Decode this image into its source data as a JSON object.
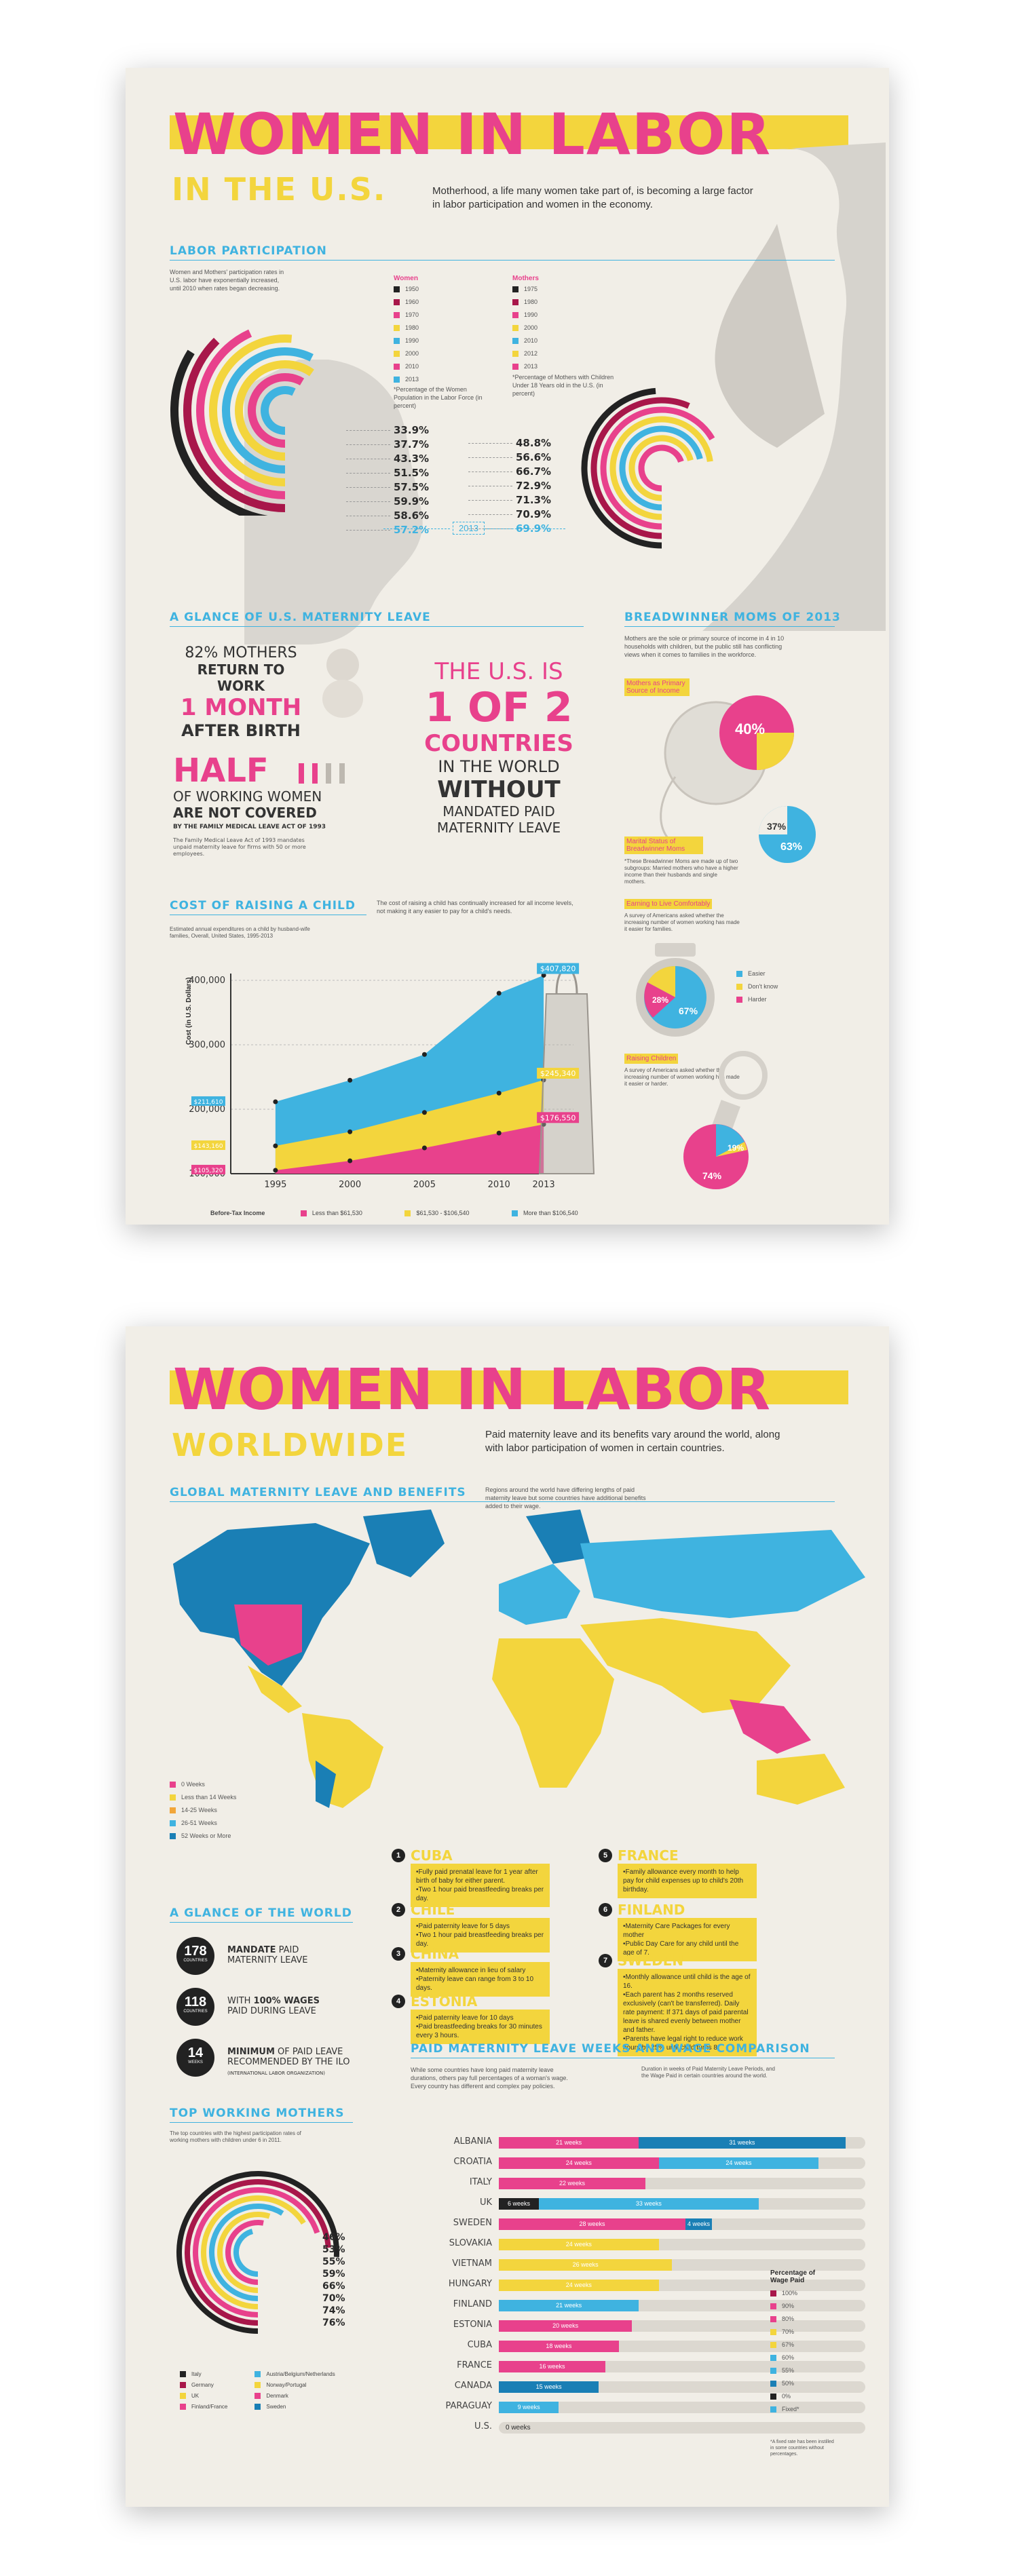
{
  "poster1": {
    "title_line1": "WOMEN IN LABOR",
    "title_line2": "IN THE U.S.",
    "intro": "Motherhood, a life many women take part of, is becoming a large factor in labor participation and women in the economy.",
    "labor": {
      "heading": "LABOR PARTICIPATION",
      "desc": "Women and Mothers' participation rates in U.S. labor have exponentially increased, until 2010 when rates began decreasing.",
      "women_legend_title": "Women",
      "mothers_legend_title": "Mothers",
      "women_years": [
        "1950",
        "1960",
        "1970",
        "1980",
        "1990",
        "2000",
        "2010",
        "2013"
      ],
      "women_values": [
        "33.9%",
        "37.7%",
        "43.3%",
        "51.5%",
        "57.5%",
        "59.9%",
        "58.6%",
        "57.2%"
      ],
      "mothers_years": [
        "1975",
        "1980",
        "1990",
        "2000",
        "2010",
        "2012",
        "2013"
      ],
      "mothers_values": [
        "48.8%",
        "56.6%",
        "66.7%",
        "72.9%",
        "71.3%",
        "70.9%",
        "69.9%"
      ],
      "women_note": "*Percentage of the Women Population in the Labor Force (in percent)",
      "mothers_note": "*Percentage of Mothers with Children Under 18 Years old in the U.S. (in percent)",
      "year_tag": "2013"
    },
    "maternity": {
      "heading": "A GLANCE OF U.S. MATERNITY LEAVE",
      "stat1_a": "82% MOTHERS",
      "stat1_b": "RETURN TO WORK",
      "stat1_c": "1 MONTH",
      "stat1_d": "AFTER BIRTH",
      "half": "HALF",
      "half_b": "OF WORKING WOMEN",
      "half_c": "ARE NOT COVERED",
      "half_d": "BY THE FAMILY MEDICAL LEAVE ACT OF 1993",
      "half_note": "The Family Medical Leave Act of 1993 mandates unpaid maternity leave for firms with 50 or more employees.",
      "us_a": "THE U.S. IS",
      "us_b": "1 OF 2",
      "us_c": "COUNTRIES",
      "us_d": "IN THE WORLD",
      "us_e": "WITHOUT",
      "us_f": "MANDATED PAID",
      "us_g": "MATERNITY LEAVE"
    },
    "breadwinner": {
      "heading": "BREADWINNER MOMS OF 2013",
      "desc": "Mothers are the sole or primary source of income in 4 in 10 households with children, but the public still has conflicting views when it comes to families in the workforce.",
      "label1": "Mothers as Primary Source of Income",
      "value1": "40%",
      "label2": "Marital Status of Breadwinner Moms",
      "value2a": "37%",
      "value2b": "63%",
      "note2": "*These Breadwinner Moms are made up of two subgroups: Married mothers who have a higher income than their husbands and single mothers.",
      "label3": "Earning to Live Comfortably",
      "desc3": "A survey of Americans asked whether the increasing number of women working has made it easier for families.",
      "pie3": [
        "28%",
        "67%"
      ],
      "legend3": [
        "Easier",
        "Don't know",
        "Harder"
      ],
      "label4": "Raising Children",
      "desc4": "A survey of Americans asked whether the increasing number of women working has made it easier or harder.",
      "pie4": [
        "19%",
        "74%"
      ]
    },
    "cost": {
      "heading": "COST OF RAISING A CHILD",
      "desc": "The cost of raising a child has continually increased for all income levels, not making it any easier to pay for a child's needs.",
      "note": "Estimated annual expenditures on a child by husband-wife families, Overall, United States, 1995-2013",
      "ylabel": "Cost (in U.S. Dollars)",
      "legend_title": "Before-Tax Income",
      "legend": [
        "Less than $61,530",
        "$61,530 - $106,540",
        "More than $106,540"
      ],
      "callouts": [
        "$407,820",
        "$245,340",
        "$176,550"
      ],
      "left_callouts": [
        "$211,610",
        "$143,160",
        "$105,320"
      ]
    }
  },
  "poster2": {
    "title_line1": "WOMEN IN LABOR",
    "title_line2": "WORLDWIDE",
    "intro": "Paid maternity leave and its benefits vary around the world, along with labor participation of women in certain countries.",
    "map": {
      "heading": "GLOBAL MATERNITY LEAVE AND BENEFITS",
      "desc": "Regions around the world have differing lengths of paid maternity leave but some countries have additional benefits added to their wage.",
      "legend": [
        "0 Weeks",
        "Less than 14 Weeks",
        "14-25 Weeks",
        "26-51 Weeks",
        "52 Weeks or More"
      ]
    },
    "facts": [
      {
        "num": "1",
        "title": "CUBA",
        "text": "•Fully paid prenatal leave for 1 year after birth of baby for either parent.\n•Two 1 hour paid breastfeeding breaks per day."
      },
      {
        "num": "2",
        "title": "CHILE",
        "text": "•Paid paternity leave for 5 days\n•Two 1 hour paid breastfeeding breaks per day."
      },
      {
        "num": "3",
        "title": "CHINA",
        "text": "•Maternity allowance in lieu of salary\n•Paternity leave can range from 3 to 10 days."
      },
      {
        "num": "4",
        "title": "ESTONIA",
        "text": "•Paid paternity leave for 10 days\n•Paid breastfeeding breaks for 30 minutes every 3 hours."
      },
      {
        "num": "5",
        "title": "FRANCE",
        "text": "•Family allowance every month to help pay for child expenses up to child's 20th birthday."
      },
      {
        "num": "6",
        "title": "FINLAND",
        "text": "•Maternity Care Packages for every mother\n•Public Day Care for any child until the age of 7."
      },
      {
        "num": "7",
        "title": "SWEDEN",
        "text": "•Monthly allowance until child is the age of 16.\n•Each parent has 2 months reserved exclusively (can't be transferred). Daily rate payment: If 371 days of paid parental leave is shared evenly between mother and father.\n•Parents have legal right to reduce work hours by 25% until child turns 8."
      }
    ],
    "glance": {
      "heading": "A GLANCE OF THE WORLD",
      "items": [
        {
          "num": "178",
          "unit": "COUNTRIES",
          "a": "MANDATE",
          "b": " PAID",
          "c": "MATERNITY LEAVE"
        },
        {
          "num": "118",
          "unit": "COUNTRIES",
          "a": "WITH ",
          "b": "100% WAGES",
          "c": " PAID DURING LEAVE"
        },
        {
          "num": "14",
          "unit": "WEEKS",
          "a": "MINIMUM",
          "b": " OF PAID LEAVE",
          "c": "RECOMMENDED BY THE ILO",
          "d": "(INTERNATIONAL LABOR ORGANIZATION)"
        }
      ]
    },
    "top_mothers": {
      "heading": "TOP WORKING MOTHERS",
      "desc": "The top countries with the highest participation rates of working mothers with children under 6 in 2011.",
      "values": [
        "46%",
        "53%",
        "55%",
        "59%",
        "66%",
        "70%",
        "74%",
        "76%"
      ],
      "legend_left": [
        "Italy",
        "Germany",
        "UK",
        "Finland/France"
      ],
      "legend_right": [
        "Austria/Belgium/Netherlands",
        "Norway/Portugal",
        "Denmark",
        "Sweden"
      ]
    },
    "wage": {
      "heading": "PAID MATERNITY LEAVE WEEKS AND WAGE COMPARISON",
      "desc": "While some countries have long paid maternity leave durations, others pay full percentages of a woman's wage. Every country has different and complex pay policies.",
      "note": "Duration in weeks of Paid Maternity Leave Periods, and the Wage Paid in certain countries around the world.",
      "legend_title": "Percentage of Wage Paid",
      "legend": [
        "100%",
        "90%",
        "80%",
        "70%",
        "67%",
        "60%",
        "55%",
        "50%",
        "0%",
        "Fixed*"
      ],
      "rows": [
        {
          "country": "ALBANIA",
          "label1": "21 weeks",
          "label2": "31 weeks"
        },
        {
          "country": "CROATIA",
          "label1": "24 weeks",
          "label2": "24 weeks"
        },
        {
          "country": "ITALY",
          "label1": "22 weeks",
          "label2": ""
        },
        {
          "country": "UK",
          "label1": "6 weeks",
          "label2": "33 weeks"
        },
        {
          "country": "SWEDEN",
          "label1": "28 weeks",
          "label2": "4 weeks"
        },
        {
          "country": "SLOVAKIA",
          "label1": "24 weeks",
          "label2": ""
        },
        {
          "country": "VIETNAM",
          "label1": "26 weeks",
          "label2": ""
        },
        {
          "country": "HUNGARY",
          "label1": "24 weeks",
          "label2": ""
        },
        {
          "country": "FINLAND",
          "label1": "21 weeks",
          "label2": ""
        },
        {
          "country": "ESTONIA",
          "label1": "20 weeks",
          "label2": ""
        },
        {
          "country": "CUBA",
          "label1": "18 weeks",
          "label2": ""
        },
        {
          "country": "FRANCE",
          "label1": "16 weeks",
          "label2": ""
        },
        {
          "country": "CANADA",
          "label1": "15 weeks",
          "label2": ""
        },
        {
          "country": "PARAGUAY",
          "label1": "9 weeks",
          "label2": ""
        },
        {
          "country": "U.S.",
          "label1": "0 weeks",
          "label2": ""
        }
      ],
      "footnote": "*A fixed rate has been instilled in some countries without percentages."
    }
  },
  "colors": {
    "pink": "#e8418c",
    "yellow": "#f3d53d",
    "blue": "#3fb3e0",
    "navy": "#1a7fb5",
    "maroon": "#a8174a",
    "orange": "#f2a63a",
    "dark": "#222222"
  },
  "chart_data": [
    {
      "type": "area",
      "title": "COST OF RAISING A CHILD",
      "ylabel": "Cost (in U.S. Dollars)",
      "x": [
        1995,
        2000,
        2005,
        2010,
        2013
      ],
      "ylim": [
        100000,
        400000
      ],
      "series": [
        {
          "name": "More than $106,540",
          "values": [
            211610,
            245000,
            285000,
            380000,
            407820
          ]
        },
        {
          "name": "$61,530 - $106,540",
          "values": [
            143160,
            165000,
            195000,
            225000,
            245340
          ]
        },
        {
          "name": "Less than $61,530",
          "values": [
            105320,
            120000,
            140000,
            163000,
            176550
          ]
        }
      ]
    },
    {
      "type": "bar",
      "title": "PAID MATERNITY LEAVE WEEKS AND WAGE COMPARISON",
      "categories": [
        "ALBANIA",
        "CROATIA",
        "ITALY",
        "UK",
        "SWEDEN",
        "SLOVAKIA",
        "VIETNAM",
        "HUNGARY",
        "FINLAND",
        "ESTONIA",
        "CUBA",
        "FRANCE",
        "CANADA",
        "PARAGUAY",
        "U.S."
      ],
      "series": [
        {
          "name": "Segment 1",
          "values": [
            21,
            24,
            22,
            6,
            28,
            24,
            26,
            24,
            21,
            20,
            18,
            16,
            15,
            9,
            0
          ]
        },
        {
          "name": "Segment 2",
          "values": [
            31,
            24,
            0,
            33,
            4,
            0,
            0,
            0,
            0,
            0,
            0,
            0,
            0,
            0,
            0
          ]
        }
      ]
    }
  ]
}
